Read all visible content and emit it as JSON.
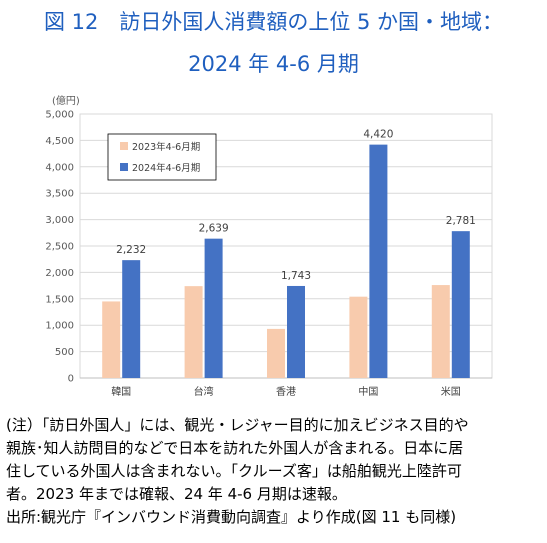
{
  "title_line1": "図 12　訪日外国人消費額の上位 5 か国・地域：",
  "title_line2": "2024 年 4-6 月期",
  "chart_data": {
    "type": "bar",
    "unit_label": "(億円)",
    "categories": [
      "韓国",
      "台湾",
      "香港",
      "中国",
      "米国"
    ],
    "series": [
      {
        "name": "2023年4-6月期",
        "color": "#f8cbad",
        "values": [
          1450,
          1740,
          930,
          1540,
          1760
        ]
      },
      {
        "name": "2024年4-6月期",
        "color": "#4472c4",
        "values": [
          2232,
          2639,
          1743,
          4420,
          2781
        ]
      }
    ],
    "data_labels": [
      "2,232",
      "2,639",
      "1,743",
      "4,420",
      "2,781"
    ],
    "yticks": [
      "0",
      "500",
      "1,000",
      "1,500",
      "2,000",
      "2,500",
      "3,000",
      "3,500",
      "4,000",
      "4,500",
      "5,000"
    ],
    "ylim": [
      0,
      5000
    ],
    "grid": true,
    "legend_position": "top-left"
  },
  "notes": [
    "(注）「訪日外国人」には、観光・レジャー目的に加えビジネス目的や",
    "親族･知人訪問目的などで日本を訪れた外国人が含まれる。日本に居",
    "住している外国人は含まれない。「クルーズ客」は船舶観光上陸許可",
    "者。2023 年までは確報、24 年 4-6 月期は速報。",
    "出所:観光庁『インバウンド消費動向調査』より作成(図 11 も同様)"
  ]
}
